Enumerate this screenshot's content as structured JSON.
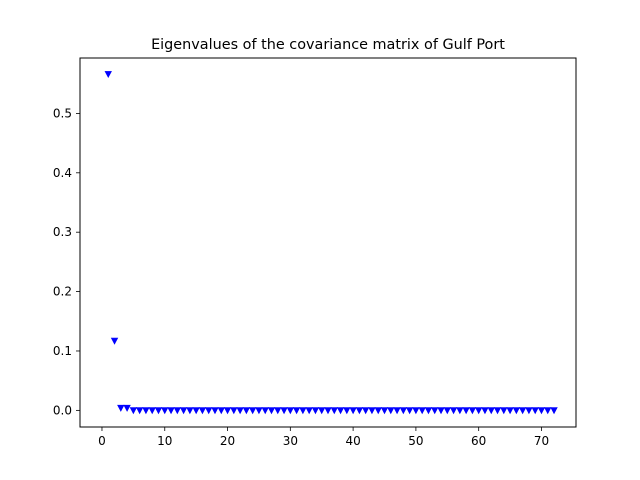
{
  "chart_data": {
    "type": "scatter",
    "title": "Eigenvalues of the covariance matrix of Gulf Port",
    "xlabel": "",
    "ylabel": "",
    "xlim": [
      -3.5,
      75.5
    ],
    "ylim": [
      -0.028,
      0.5933
    ],
    "xticks": [
      0,
      10,
      20,
      30,
      40,
      50,
      60,
      70
    ],
    "xtick_labels": [
      "0",
      "10",
      "20",
      "30",
      "40",
      "50",
      "60",
      "70"
    ],
    "yticks": [
      0.0,
      0.1,
      0.2,
      0.3,
      0.4,
      0.5
    ],
    "ytick_labels": [
      "0.0",
      "0.1",
      "0.2",
      "0.3",
      "0.4",
      "0.5"
    ],
    "grid": false,
    "marker": "triangle-down",
    "color": "#0000ff",
    "series": [
      {
        "x": [
          1,
          2,
          3,
          4,
          5,
          6,
          7,
          8,
          9,
          10,
          11,
          12,
          13,
          14,
          15,
          16,
          17,
          18,
          19,
          20,
          21,
          22,
          23,
          24,
          25,
          26,
          27,
          28,
          29,
          30,
          31,
          32,
          33,
          34,
          35,
          36,
          37,
          38,
          39,
          40,
          41,
          42,
          43,
          44,
          45,
          46,
          47,
          48,
          49,
          50,
          51,
          52,
          53,
          54,
          55,
          56,
          57,
          58,
          59,
          60,
          61,
          62,
          63,
          64,
          65,
          66,
          67,
          68,
          69,
          70,
          71,
          72
        ],
        "y": [
          0.566,
          0.117,
          0.004,
          0.004,
          0,
          0,
          0,
          0,
          0,
          0,
          0,
          0,
          0,
          0,
          0,
          0,
          0,
          0,
          0,
          0,
          0,
          0,
          0,
          0,
          0,
          0,
          0,
          0,
          0,
          0,
          0,
          0,
          0,
          0,
          0,
          0,
          0,
          0,
          0,
          0,
          0,
          0,
          0,
          0,
          0,
          0,
          0,
          0,
          0,
          0,
          0,
          0,
          0,
          0,
          0,
          0,
          0,
          0,
          0,
          0,
          0,
          0,
          0,
          0,
          0,
          0,
          0,
          0,
          0,
          0,
          0,
          0
        ]
      }
    ]
  }
}
